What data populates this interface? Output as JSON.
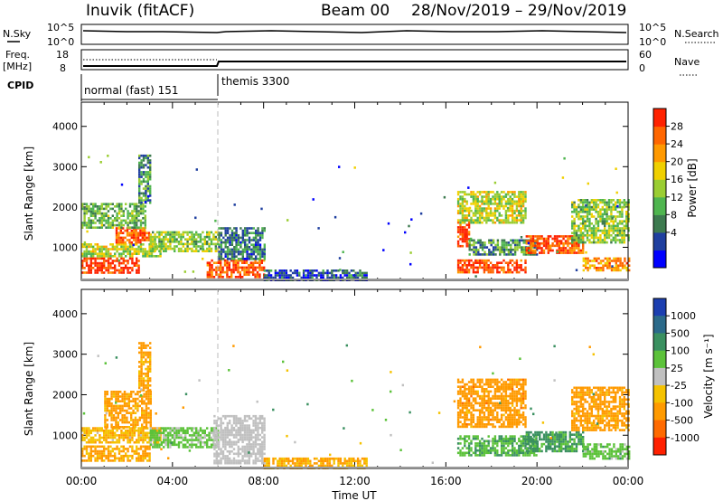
{
  "header": {
    "station": "Inuvik (fitACF)",
    "beam": "Beam 00",
    "date_range": "28/Nov/2019 – 29/Nov/2019"
  },
  "top_panels": {
    "nsky": {
      "label": "N.Sky",
      "ticks": [
        "10^5",
        "10^0"
      ],
      "right_label": "N.Search",
      "right_ticks": [
        "10^5",
        "10^0"
      ]
    },
    "freq": {
      "label_line1": "Freq.",
      "label_line2": "[MHz]",
      "ticks": [
        "18",
        "8"
      ],
      "right_label": "Nave",
      "right_ticks": [
        "60",
        "0"
      ]
    },
    "cpid": {
      "label": "CPID",
      "segments": [
        "normal (fast) 151",
        "themis 3300"
      ]
    }
  },
  "colorbars": {
    "power": {
      "title": "Power [dB]",
      "ticks": [
        "28",
        "24",
        "20",
        "16",
        "12",
        "8",
        "4"
      ],
      "colors": [
        "#0000ff",
        "#1f3f9f",
        "#3d7a4f",
        "#4fb54f",
        "#9acd32",
        "#f0d000",
        "#ff9900",
        "#ff6600",
        "#ff2200"
      ]
    },
    "velocity": {
      "title": "Velocity [m s⁻¹]",
      "ticks": [
        "1000",
        "500",
        "100",
        "25",
        "-25",
        "-100",
        "-500",
        "-1000"
      ],
      "colors": [
        "#1c3fb0",
        "#2b6a8a",
        "#3a9060",
        "#5cc23a",
        "#c0c0c0",
        "#f5c200",
        "#ff9a00",
        "#ff6a00",
        "#ff2000"
      ]
    }
  },
  "chart_data": [
    {
      "type": "heatmap",
      "title": "Power",
      "xlabel": "",
      "ylabel": "Slant Range [km]",
      "xlim": [
        0,
        24
      ],
      "ylim": [
        180,
        4600
      ],
      "yticks": [
        "1000",
        "2000",
        "3000",
        "4000"
      ],
      "clim": [
        0,
        30
      ],
      "legend": "right",
      "regions": [
        {
          "x": [
            0.0,
            2.5
          ],
          "y": [
            350,
            750
          ],
          "value": 28
        },
        {
          "x": [
            0.0,
            3.5
          ],
          "y": [
            800,
            1100
          ],
          "value": 16
        },
        {
          "x": [
            1.5,
            3.0
          ],
          "y": [
            1100,
            1500
          ],
          "value": 26
        },
        {
          "x": [
            0.0,
            2.8
          ],
          "y": [
            1500,
            2100
          ],
          "value": 12
        },
        {
          "x": [
            2.5,
            3.0
          ],
          "y": [
            2100,
            3300
          ],
          "value": 10
        },
        {
          "x": [
            3.0,
            6.0
          ],
          "y": [
            900,
            1400
          ],
          "value": 14
        },
        {
          "x": [
            5.5,
            8.0
          ],
          "y": [
            250,
            700
          ],
          "value": 26
        },
        {
          "x": [
            6.0,
            8.0
          ],
          "y": [
            700,
            1500
          ],
          "value": 8
        },
        {
          "x": [
            8.0,
            12.5
          ],
          "y": [
            200,
            450
          ],
          "value": 6
        },
        {
          "x": [
            16.5,
            17.0
          ],
          "y": [
            1000,
            1700
          ],
          "value": 28
        },
        {
          "x": [
            16.5,
            19.5
          ],
          "y": [
            1600,
            2400
          ],
          "value": 16
        },
        {
          "x": [
            16.5,
            19.5
          ],
          "y": [
            380,
            700
          ],
          "value": 27
        },
        {
          "x": [
            17.0,
            20.0
          ],
          "y": [
            800,
            1200
          ],
          "value": 10
        },
        {
          "x": [
            19.5,
            22.0
          ],
          "y": [
            850,
            1300
          ],
          "value": 26
        },
        {
          "x": [
            21.5,
            24.0
          ],
          "y": [
            1100,
            2200
          ],
          "value": 14
        },
        {
          "x": [
            22.0,
            24.0
          ],
          "y": [
            400,
            750
          ],
          "value": 22
        }
      ]
    },
    {
      "type": "heatmap",
      "title": "Velocity",
      "xlabel": "Time UT",
      "ylabel": "Slant Range [km]",
      "xlim": [
        0,
        24
      ],
      "ylim": [
        180,
        4600
      ],
      "yticks": [
        "1000",
        "2000",
        "3000",
        "4000"
      ],
      "xticks": [
        "00:00",
        "04:00",
        "08:00",
        "12:00",
        "16:00",
        "20:00",
        "00:00"
      ],
      "clim": [
        -1000,
        1000
      ],
      "legend": "right",
      "regions": [
        {
          "x": [
            0.0,
            3.0
          ],
          "y": [
            350,
            750
          ],
          "value": -150
        },
        {
          "x": [
            0.0,
            3.5
          ],
          "y": [
            800,
            1200
          ],
          "value": -80
        },
        {
          "x": [
            1.0,
            3.0
          ],
          "y": [
            1200,
            2100
          ],
          "value": -200
        },
        {
          "x": [
            2.5,
            3.0
          ],
          "y": [
            2100,
            3300
          ],
          "value": -150
        },
        {
          "x": [
            3.0,
            6.0
          ],
          "y": [
            700,
            1200
          ],
          "value": 40
        },
        {
          "x": [
            5.8,
            8.0
          ],
          "y": [
            300,
            1500
          ],
          "value": 0
        },
        {
          "x": [
            8.0,
            12.5
          ],
          "y": [
            200,
            450
          ],
          "value": -100
        },
        {
          "x": [
            16.5,
            19.5
          ],
          "y": [
            1200,
            2400
          ],
          "value": -300
        },
        {
          "x": [
            16.5,
            20.0
          ],
          "y": [
            500,
            1000
          ],
          "value": 80
        },
        {
          "x": [
            19.5,
            22.0
          ],
          "y": [
            600,
            1100
          ],
          "value": 150
        },
        {
          "x": [
            21.5,
            24.0
          ],
          "y": [
            1100,
            2200
          ],
          "value": -200
        },
        {
          "x": [
            22.0,
            24.0
          ],
          "y": [
            400,
            800
          ],
          "value": 60
        }
      ]
    }
  ]
}
